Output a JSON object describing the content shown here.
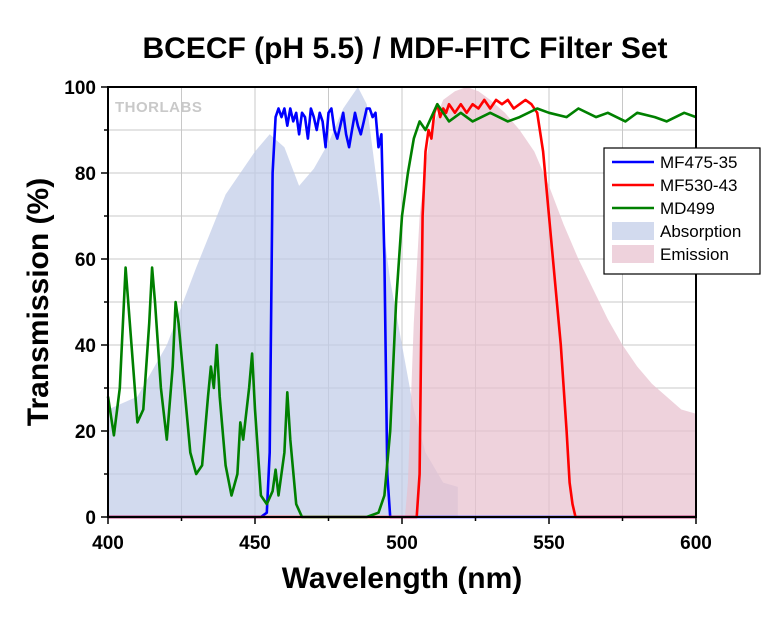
{
  "chart_data": {
    "type": "line",
    "title": "BCECF (pH 5.5) / MDF-FITC Filter Set",
    "xlabel": "Wavelength (nm)",
    "ylabel": "Transmission (%)",
    "xlim": [
      400,
      600
    ],
    "ylim": [
      0,
      100
    ],
    "x_ticks": [
      400,
      450,
      500,
      550,
      600
    ],
    "y_ticks": [
      0,
      20,
      40,
      60,
      80,
      100
    ],
    "grid": true,
    "legend_position": "top-right",
    "watermark": "THORLABS",
    "series": [
      {
        "name": "MF475-35",
        "kind": "line",
        "color": "#0000ff",
        "points": [
          [
            400,
            0
          ],
          [
            452,
            0
          ],
          [
            454,
            1
          ],
          [
            455,
            15
          ],
          [
            456,
            80
          ],
          [
            457,
            93
          ],
          [
            458,
            95
          ],
          [
            459,
            93
          ],
          [
            460,
            95
          ],
          [
            461,
            91
          ],
          [
            462,
            95
          ],
          [
            463,
            92
          ],
          [
            464,
            94
          ],
          [
            465,
            89
          ],
          [
            466,
            94
          ],
          [
            467,
            93
          ],
          [
            468,
            88
          ],
          [
            469,
            95
          ],
          [
            470,
            93
          ],
          [
            471,
            90
          ],
          [
            472,
            94
          ],
          [
            473,
            92
          ],
          [
            474,
            86
          ],
          [
            475,
            94
          ],
          [
            476,
            95
          ],
          [
            477,
            90
          ],
          [
            478,
            88
          ],
          [
            479,
            91
          ],
          [
            480,
            94
          ],
          [
            481,
            89
          ],
          [
            482,
            86
          ],
          [
            483,
            90
          ],
          [
            484,
            94
          ],
          [
            485,
            91
          ],
          [
            486,
            89
          ],
          [
            487,
            92
          ],
          [
            488,
            95
          ],
          [
            489,
            95
          ],
          [
            490,
            93
          ],
          [
            491,
            94
          ],
          [
            492,
            86
          ],
          [
            493,
            89
          ],
          [
            494,
            60
          ],
          [
            495,
            10
          ],
          [
            496,
            0
          ],
          [
            600,
            0
          ]
        ]
      },
      {
        "name": "MF530-43",
        "kind": "line",
        "color": "#ff0000",
        "points": [
          [
            400,
            0
          ],
          [
            505,
            0
          ],
          [
            506,
            10
          ],
          [
            507,
            70
          ],
          [
            508,
            85
          ],
          [
            509,
            90
          ],
          [
            510,
            88
          ],
          [
            511,
            94
          ],
          [
            512,
            96
          ],
          [
            513,
            93
          ],
          [
            514,
            95
          ],
          [
            515,
            94
          ],
          [
            516,
            96
          ],
          [
            517,
            95
          ],
          [
            518,
            94
          ],
          [
            520,
            96
          ],
          [
            522,
            94
          ],
          [
            524,
            96
          ],
          [
            526,
            95
          ],
          [
            528,
            97
          ],
          [
            530,
            95
          ],
          [
            532,
            97
          ],
          [
            534,
            96
          ],
          [
            536,
            97
          ],
          [
            538,
            95
          ],
          [
            540,
            96
          ],
          [
            542,
            97
          ],
          [
            544,
            96
          ],
          [
            546,
            94
          ],
          [
            548,
            85
          ],
          [
            550,
            70
          ],
          [
            552,
            55
          ],
          [
            554,
            40
          ],
          [
            556,
            20
          ],
          [
            557,
            8
          ],
          [
            558,
            3
          ],
          [
            559,
            0
          ],
          [
            600,
            0
          ]
        ]
      },
      {
        "name": "MD499",
        "kind": "line",
        "color": "#008000",
        "points": [
          [
            400,
            28
          ],
          [
            402,
            19
          ],
          [
            404,
            30
          ],
          [
            406,
            58
          ],
          [
            408,
            40
          ],
          [
            410,
            22
          ],
          [
            412,
            25
          ],
          [
            414,
            45
          ],
          [
            415,
            58
          ],
          [
            416,
            50
          ],
          [
            418,
            30
          ],
          [
            420,
            18
          ],
          [
            422,
            35
          ],
          [
            423,
            50
          ],
          [
            424,
            45
          ],
          [
            426,
            30
          ],
          [
            428,
            15
          ],
          [
            430,
            10
          ],
          [
            432,
            12
          ],
          [
            434,
            28
          ],
          [
            435,
            35
          ],
          [
            436,
            30
          ],
          [
            437,
            40
          ],
          [
            438,
            28
          ],
          [
            440,
            12
          ],
          [
            442,
            5
          ],
          [
            444,
            10
          ],
          [
            445,
            22
          ],
          [
            446,
            18
          ],
          [
            448,
            30
          ],
          [
            449,
            38
          ],
          [
            450,
            25
          ],
          [
            452,
            5
          ],
          [
            454,
            3
          ],
          [
            456,
            6
          ],
          [
            457,
            11
          ],
          [
            458,
            5
          ],
          [
            460,
            15
          ],
          [
            461,
            29
          ],
          [
            462,
            18
          ],
          [
            464,
            3
          ],
          [
            466,
            0
          ],
          [
            480,
            0
          ],
          [
            488,
            0
          ],
          [
            492,
            1
          ],
          [
            494,
            5
          ],
          [
            496,
            20
          ],
          [
            498,
            50
          ],
          [
            500,
            70
          ],
          [
            502,
            80
          ],
          [
            504,
            88
          ],
          [
            506,
            92
          ],
          [
            508,
            90
          ],
          [
            510,
            93
          ],
          [
            512,
            96
          ],
          [
            514,
            94
          ],
          [
            516,
            92
          ],
          [
            520,
            94
          ],
          [
            524,
            92
          ],
          [
            530,
            94
          ],
          [
            536,
            92
          ],
          [
            540,
            93
          ],
          [
            546,
            95
          ],
          [
            550,
            94
          ],
          [
            556,
            93
          ],
          [
            560,
            95
          ],
          [
            566,
            93
          ],
          [
            570,
            94
          ],
          [
            576,
            92
          ],
          [
            580,
            94
          ],
          [
            586,
            93
          ],
          [
            590,
            92
          ],
          [
            596,
            94
          ],
          [
            600,
            93
          ]
        ]
      },
      {
        "name": "Absorption",
        "kind": "area",
        "color": "#c0cce8",
        "points": [
          [
            400,
            25
          ],
          [
            410,
            28
          ],
          [
            420,
            40
          ],
          [
            430,
            58
          ],
          [
            440,
            75
          ],
          [
            450,
            85
          ],
          [
            455,
            89
          ],
          [
            460,
            86
          ],
          [
            465,
            77
          ],
          [
            470,
            81
          ],
          [
            475,
            87
          ],
          [
            480,
            95
          ],
          [
            485,
            100
          ],
          [
            488,
            96
          ],
          [
            492,
            75
          ],
          [
            496,
            55
          ],
          [
            500,
            40
          ],
          [
            504,
            25
          ],
          [
            508,
            15
          ],
          [
            514,
            8
          ],
          [
            519,
            7
          ],
          [
            519,
            0
          ]
        ]
      },
      {
        "name": "Emission",
        "kind": "area",
        "color": "#e8c0cf",
        "points": [
          [
            501,
            0
          ],
          [
            502,
            8
          ],
          [
            504,
            45
          ],
          [
            506,
            70
          ],
          [
            508,
            82
          ],
          [
            510,
            90
          ],
          [
            514,
            97
          ],
          [
            518,
            99
          ],
          [
            522,
            100
          ],
          [
            526,
            99
          ],
          [
            530,
            97
          ],
          [
            535,
            94
          ],
          [
            540,
            90
          ],
          [
            545,
            85
          ],
          [
            550,
            77
          ],
          [
            555,
            68
          ],
          [
            560,
            60
          ],
          [
            565,
            53
          ],
          [
            570,
            46
          ],
          [
            575,
            40
          ],
          [
            580,
            35
          ],
          [
            585,
            31
          ],
          [
            590,
            28
          ],
          [
            595,
            25
          ],
          [
            600,
            24
          ],
          [
            600,
            0
          ]
        ]
      }
    ]
  }
}
